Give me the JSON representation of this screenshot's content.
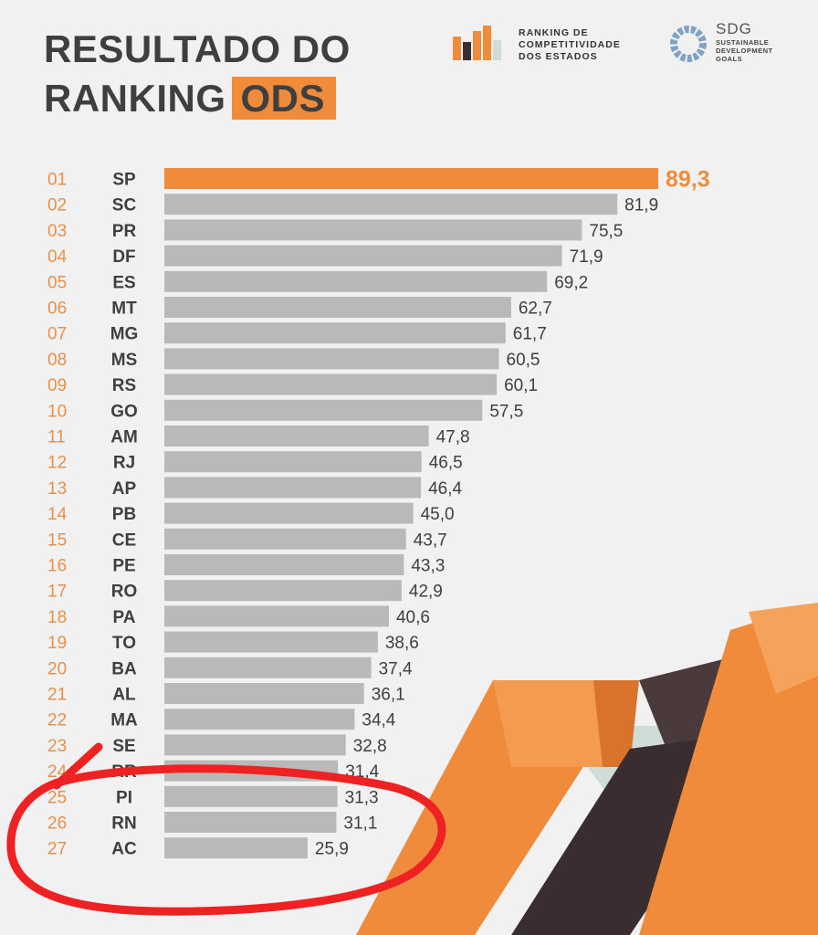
{
  "header": {
    "title_line1": "RESULTADO DO",
    "title_line2": "RANKING",
    "title_highlight": "ODS",
    "rank_logo_text": [
      "RANKING DE",
      "COMPETITIVIDADE",
      "DOS ESTADOS"
    ],
    "sdg_logo_title": "SDG",
    "sdg_logo_sub": [
      "SUSTAINABLE",
      "DEVELOPMENT",
      "GOALS"
    ]
  },
  "colors": {
    "orange": "#ef8b3a",
    "bar_gray": "#b9b9b9",
    "text_dark": "#3f3f3f",
    "rank_number": "#e8904a",
    "annotation_red": "#ee2222",
    "decor_dark": "#3a2d2f",
    "decor_light": "#cfdcd8"
  },
  "chart_data": {
    "type": "bar",
    "orientation": "horizontal",
    "ranks": [
      "01",
      "02",
      "03",
      "04",
      "05",
      "06",
      "07",
      "08",
      "09",
      "10",
      "11",
      "12",
      "13",
      "14",
      "15",
      "16",
      "17",
      "18",
      "19",
      "20",
      "21",
      "22",
      "23",
      "24",
      "25",
      "26",
      "27"
    ],
    "categories": [
      "SP",
      "SC",
      "PR",
      "DF",
      "ES",
      "MT",
      "MG",
      "MS",
      "RS",
      "GO",
      "AM",
      "RJ",
      "AP",
      "PB",
      "CE",
      "PE",
      "RO",
      "PA",
      "TO",
      "BA",
      "AL",
      "MA",
      "SE",
      "RR",
      "PI",
      "RN",
      "AC"
    ],
    "values": [
      89.3,
      81.9,
      75.5,
      71.9,
      69.2,
      62.7,
      61.7,
      60.5,
      60.1,
      57.5,
      47.8,
      46.5,
      46.4,
      45.0,
      43.7,
      43.3,
      42.9,
      40.6,
      38.6,
      37.4,
      36.1,
      34.4,
      32.8,
      31.4,
      31.3,
      31.1,
      25.9
    ],
    "value_labels": [
      "89,3",
      "81,9",
      "75,5",
      "71,9",
      "69,2",
      "62,7",
      "61,7",
      "60,5",
      "60,1",
      "57,5",
      "47,8",
      "46,5",
      "46,4",
      "45,0",
      "43,7",
      "43,3",
      "42,9",
      "40,6",
      "38,6",
      "37,4",
      "36,1",
      "34,4",
      "32,8",
      "31,4",
      "31,3",
      "31,1",
      "25,9"
    ],
    "highlight_index": 0,
    "xlim": [
      0,
      89.3
    ],
    "title": "",
    "xlabel": "",
    "ylabel": ""
  }
}
